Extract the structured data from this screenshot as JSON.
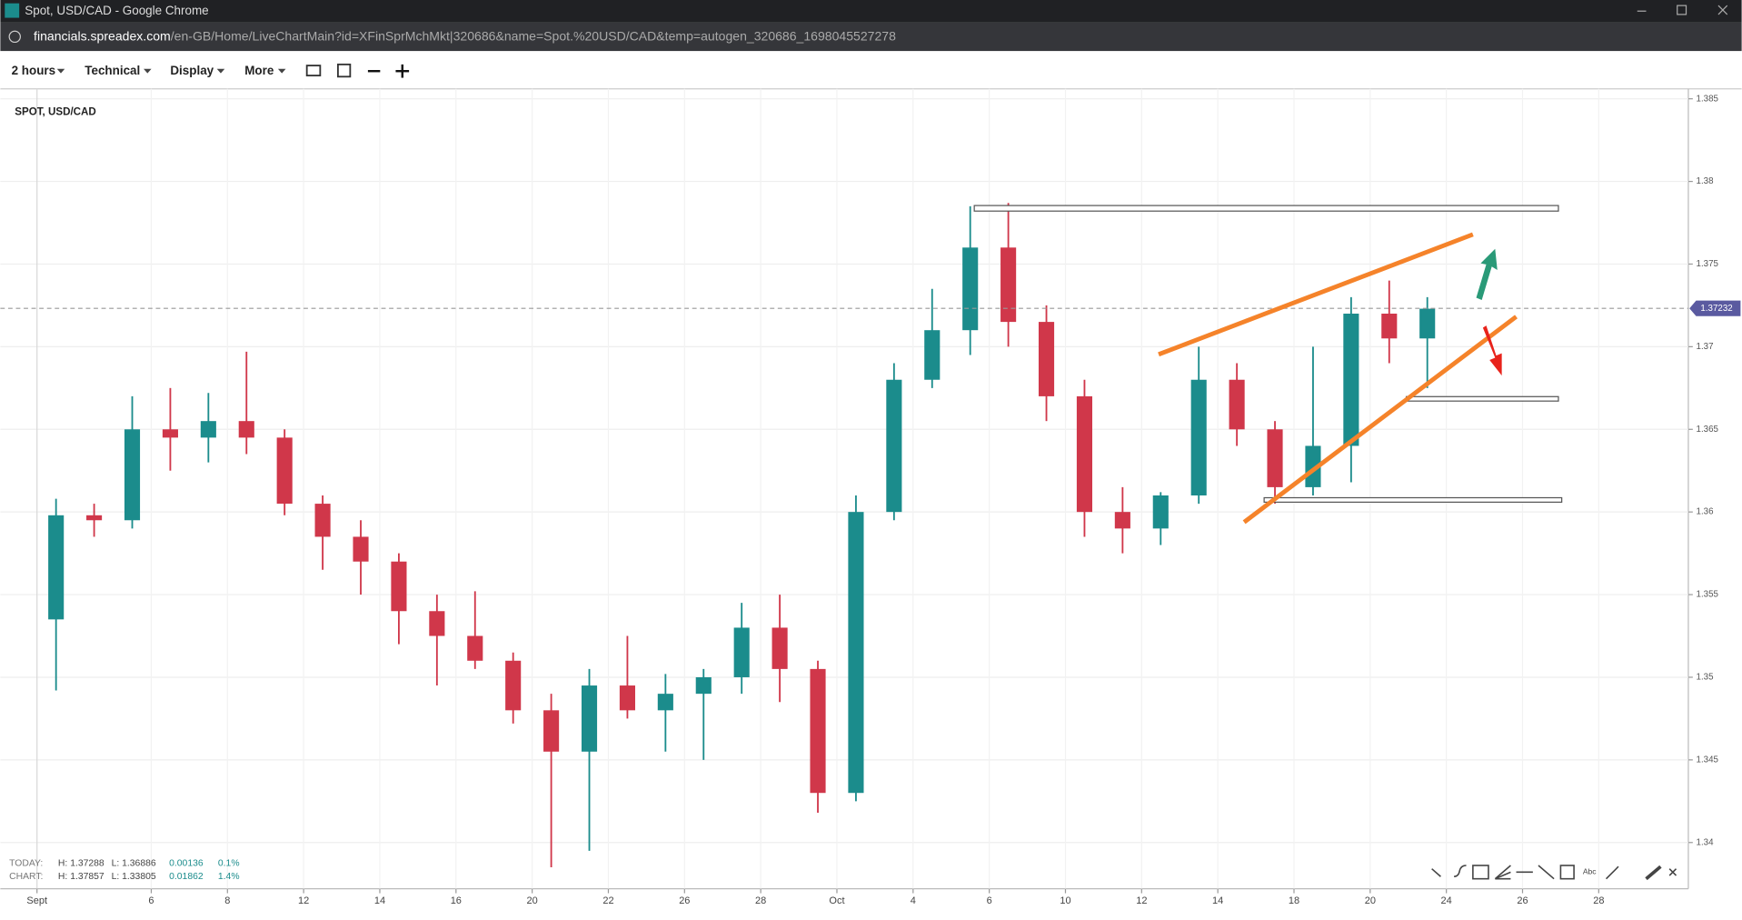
{
  "browser": {
    "title": "Spot, USD/CAD - Google Chrome",
    "url_host": "financials.spreadex.com",
    "url_path": "/en-GB/Home/LiveChartMain?id=XFinSprMchMkt|320686&name=Spot.%20USD/CAD&temp=autogen_320686_1698045527278"
  },
  "toolbar": {
    "items": [
      "2 hours",
      "Technical",
      "Display",
      "More"
    ]
  },
  "stats": [
    {
      "label": "TODAY:",
      "high": "H: 1.37288",
      "low": "L: 1.36886",
      "change": "0.00136",
      "percent": "0.1%"
    },
    {
      "label": "CHART:",
      "high": "H: 1.37857",
      "low": "L: 1.33805",
      "change": "0.01862",
      "percent": "1.4%"
    }
  ],
  "chart_data": {
    "type": "candlestick",
    "title": "SPOT, USD/CAD",
    "categories": [
      "Sept",
      null,
      null,
      "6",
      null,
      "8",
      null,
      "12",
      null,
      "14",
      null,
      "16",
      null,
      "20",
      null,
      "22",
      null,
      "26",
      null,
      "28",
      null,
      "Oct",
      null,
      "4",
      null,
      "6",
      null,
      "10",
      null,
      "12",
      null,
      "14",
      null,
      "18",
      null,
      "20",
      null,
      "24",
      null,
      "26",
      null,
      "28"
    ],
    "open": [
      1.3535,
      1.3598,
      1.3595,
      1.365,
      1.3645,
      1.3655,
      1.3645,
      1.3605,
      1.3585,
      1.357,
      1.354,
      1.3525,
      1.351,
      1.348,
      1.3455,
      1.3495,
      1.348,
      1.349,
      1.35,
      1.353,
      1.3505,
      1.343,
      1.36,
      1.368,
      1.371,
      1.376,
      1.3715,
      1.367,
      1.36,
      1.359,
      1.361,
      1.368,
      1.365,
      1.3615,
      1.364,
      1.372,
      1.3705,
      null,
      null,
      null,
      null,
      null
    ],
    "high": [
      1.3608,
      1.3605,
      1.367,
      1.3675,
      1.3672,
      1.3697,
      1.365,
      1.361,
      1.3595,
      1.3575,
      1.355,
      1.3552,
      1.3515,
      1.349,
      1.3505,
      1.3525,
      1.3502,
      1.3505,
      1.3545,
      1.355,
      1.351,
      1.361,
      1.369,
      1.3735,
      1.3785,
      1.3787,
      1.3725,
      1.368,
      1.3615,
      1.3612,
      1.37,
      1.369,
      1.3655,
      1.37,
      1.373,
      1.374,
      1.373,
      null,
      null,
      null,
      null,
      null
    ],
    "low": [
      1.3492,
      1.3585,
      1.359,
      1.3625,
      1.363,
      1.3635,
      1.3598,
      1.3565,
      1.355,
      1.352,
      1.3495,
      1.3505,
      1.3472,
      1.3385,
      1.3395,
      1.3475,
      1.3455,
      1.345,
      1.349,
      1.3485,
      1.3418,
      1.3425,
      1.3595,
      1.3675,
      1.3695,
      1.37,
      1.3655,
      1.3585,
      1.3575,
      1.358,
      1.3605,
      1.364,
      1.3605,
      1.361,
      1.3618,
      1.369,
      1.3675,
      null,
      null,
      null,
      null,
      null
    ],
    "close": [
      1.3598,
      1.3595,
      1.365,
      1.3645,
      1.3655,
      1.3645,
      1.3605,
      1.3585,
      1.357,
      1.354,
      1.3525,
      1.351,
      1.348,
      1.3455,
      1.3495,
      1.348,
      1.349,
      1.35,
      1.353,
      1.3505,
      1.343,
      1.36,
      1.368,
      1.371,
      1.376,
      1.3715,
      1.367,
      1.36,
      1.359,
      1.361,
      1.368,
      1.365,
      1.3615,
      1.364,
      1.372,
      1.3705,
      1.3723,
      null,
      null,
      null,
      null,
      null
    ],
    "up_color": "#1b8c8c",
    "down_color": "#d0374a",
    "last_price": 1.37232,
    "ylim": [
      1.3372,
      1.3856
    ],
    "yticks": [
      1.34,
      1.345,
      1.35,
      1.355,
      1.36,
      1.365,
      1.37,
      1.375,
      1.38,
      1.385
    ],
    "grid": true
  }
}
